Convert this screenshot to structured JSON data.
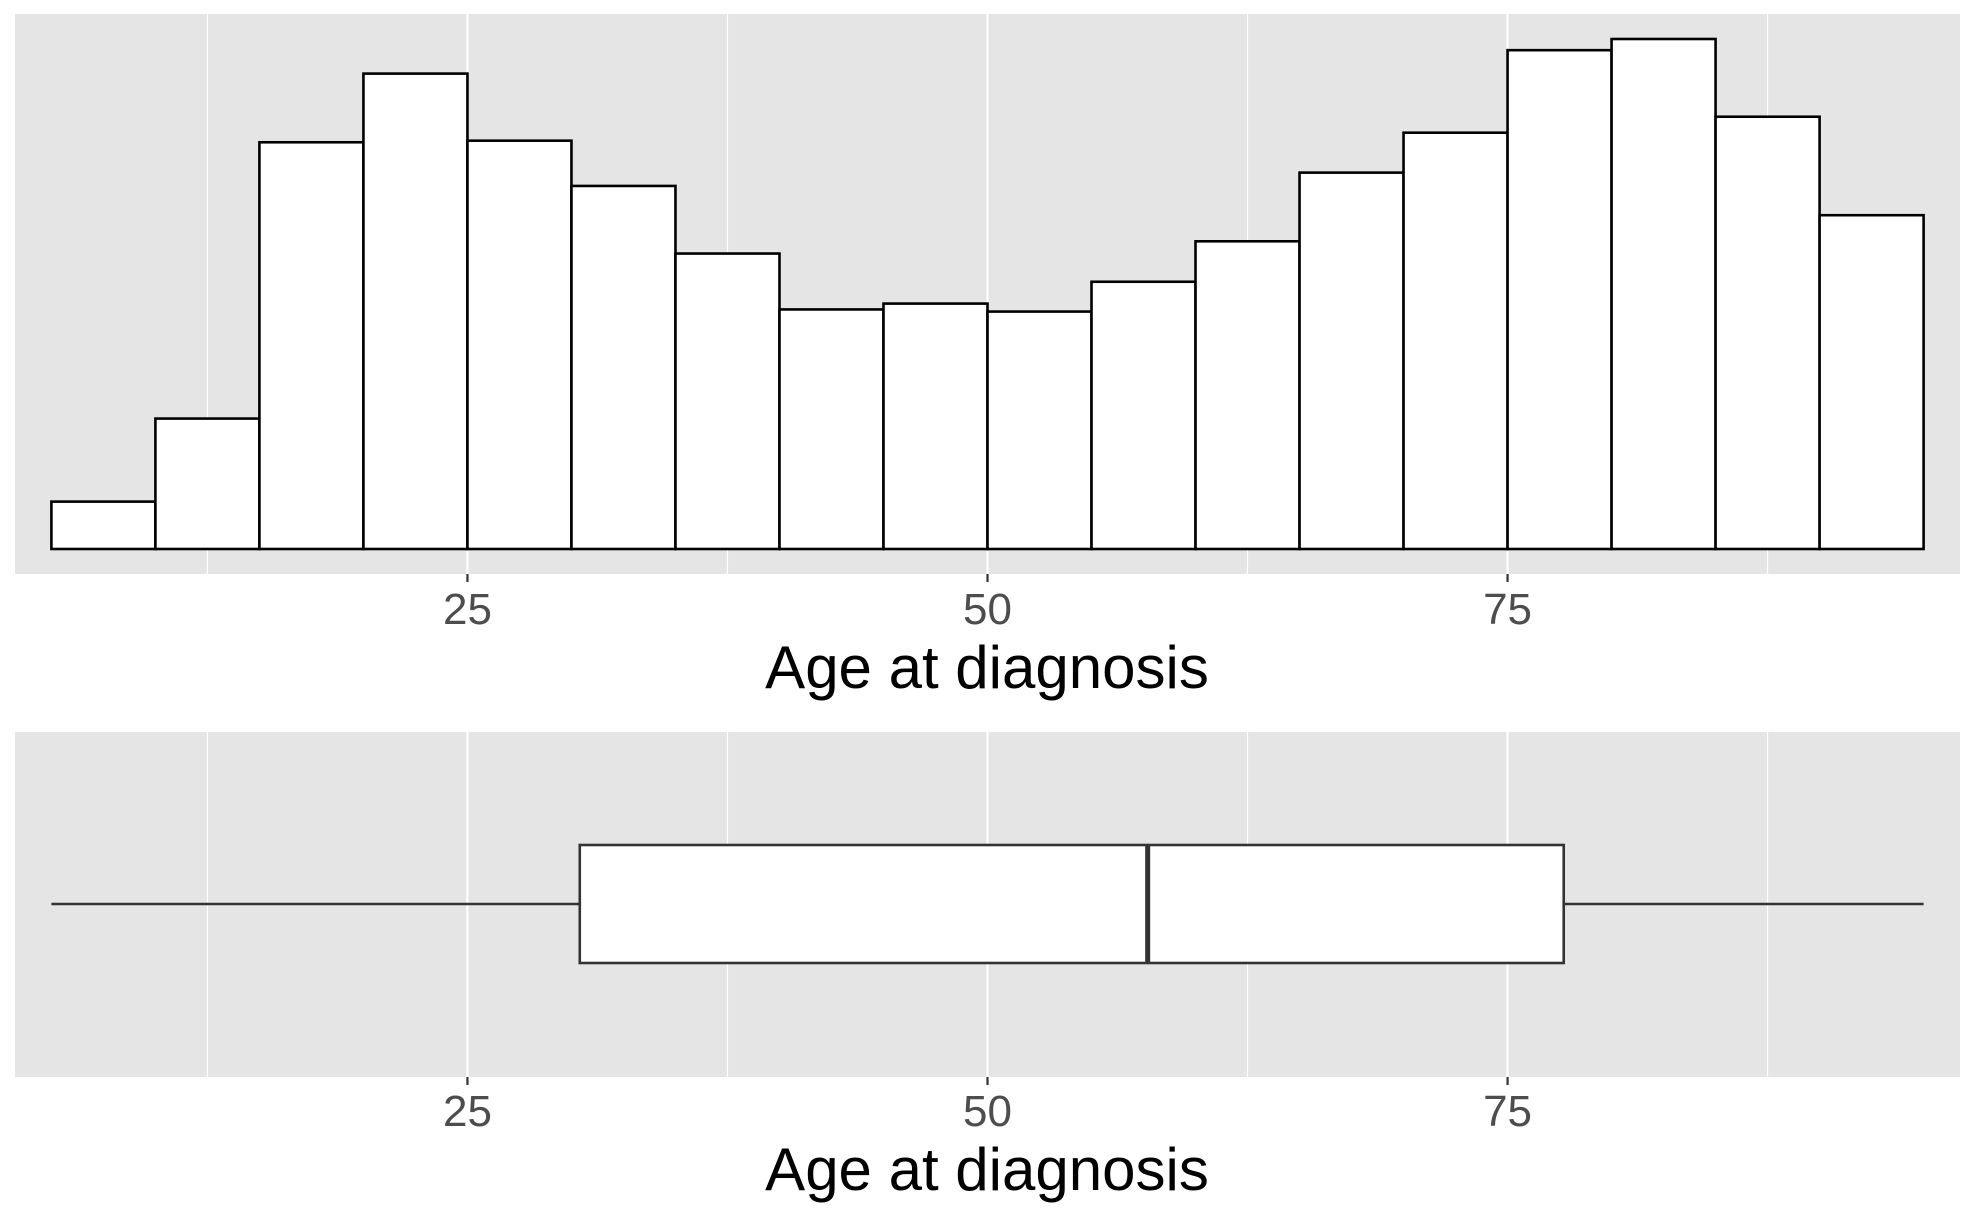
{
  "chart_data": [
    {
      "type": "histogram",
      "xlabel": "Age at diagnosis",
      "ylabel": "",
      "xlim": [
        3.25,
        96.75
      ],
      "x_ticks": [
        25,
        50,
        75
      ],
      "x_tick_labels": [
        "25",
        "50",
        "75"
      ],
      "y_axis_shown": false,
      "grid": true,
      "bin_width": 5,
      "bins": [
        {
          "x_start": 5,
          "x_end": 10,
          "count": 0.089
        },
        {
          "x_start": 10,
          "x_end": 15,
          "count": 0.245
        },
        {
          "x_start": 15,
          "x_end": 20,
          "count": 0.764
        },
        {
          "x_start": 20,
          "x_end": 25,
          "count": 0.893
        },
        {
          "x_start": 25,
          "x_end": 30,
          "count": 0.767
        },
        {
          "x_start": 30,
          "x_end": 35,
          "count": 0.682
        },
        {
          "x_start": 35,
          "x_end": 40,
          "count": 0.555
        },
        {
          "x_start": 40,
          "x_end": 45,
          "count": 0.45
        },
        {
          "x_start": 45,
          "x_end": 50,
          "count": 0.461
        },
        {
          "x_start": 50,
          "x_end": 55,
          "count": 0.446
        },
        {
          "x_start": 55,
          "x_end": 60,
          "count": 0.502
        },
        {
          "x_start": 60,
          "x_end": 65,
          "count": 0.578
        },
        {
          "x_start": 65,
          "x_end": 70,
          "count": 0.707
        },
        {
          "x_start": 70,
          "x_end": 75,
          "count": 0.782
        },
        {
          "x_start": 75,
          "x_end": 80,
          "count": 0.937
        },
        {
          "x_start": 80,
          "x_end": 85,
          "count": 0.958
        },
        {
          "x_start": 85,
          "x_end": 90,
          "count": 0.812
        },
        {
          "x_start": 90,
          "x_end": 95,
          "count": 0.627
        }
      ]
    },
    {
      "type": "boxplot",
      "xlabel": "Age at diagnosis",
      "xlim": [
        3.25,
        96.75
      ],
      "x_ticks": [
        25,
        50,
        75
      ],
      "x_tick_labels": [
        "25",
        "50",
        "75"
      ],
      "y_axis_shown": false,
      "grid": true,
      "whisker_low": 5,
      "q1": 30.4,
      "median": 57.7,
      "q3": 77.7,
      "whisker_high": 95
    }
  ]
}
